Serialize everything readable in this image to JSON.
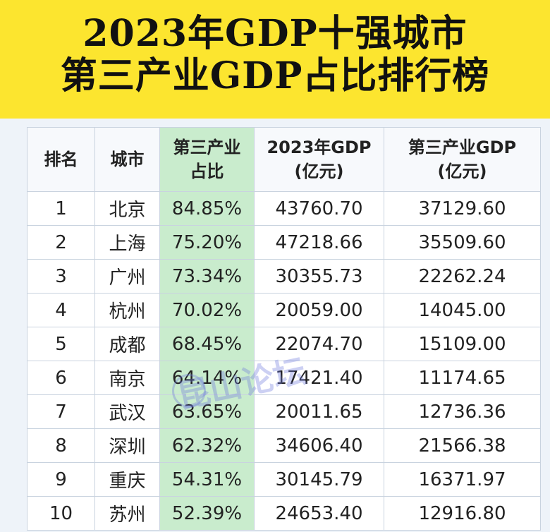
{
  "title": {
    "line1": "2023年GDP十强城市",
    "line2": "第三产业GDP占比排行榜"
  },
  "chart_data": {
    "type": "table",
    "columns": [
      {
        "line1": "排名",
        "line2": ""
      },
      {
        "line1": "城市",
        "line2": ""
      },
      {
        "line1": "第三产业",
        "line2": "占比"
      },
      {
        "line1": "2023年GDP",
        "line2": "(亿元)"
      },
      {
        "line1": "第三产业GDP",
        "line2": "(亿元)"
      }
    ],
    "rows": [
      {
        "rank": "1",
        "city": "北京",
        "share": "84.85%",
        "gdp": "43760.70",
        "tertiary_gdp": "37129.60"
      },
      {
        "rank": "2",
        "city": "上海",
        "share": "75.20%",
        "gdp": "47218.66",
        "tertiary_gdp": "35509.60"
      },
      {
        "rank": "3",
        "city": "广州",
        "share": "73.34%",
        "gdp": "30355.73",
        "tertiary_gdp": "22262.24"
      },
      {
        "rank": "4",
        "city": "杭州",
        "share": "70.02%",
        "gdp": "20059.00",
        "tertiary_gdp": "14045.00"
      },
      {
        "rank": "5",
        "city": "成都",
        "share": "68.45%",
        "gdp": "22074.70",
        "tertiary_gdp": "15109.00"
      },
      {
        "rank": "6",
        "city": "南京",
        "share": "64.14%",
        "gdp": "17421.40",
        "tertiary_gdp": "11174.65"
      },
      {
        "rank": "7",
        "city": "武汉",
        "share": "63.65%",
        "gdp": "20011.65",
        "tertiary_gdp": "12736.36"
      },
      {
        "rank": "8",
        "city": "深圳",
        "share": "62.32%",
        "gdp": "34606.40",
        "tertiary_gdp": "21566.38"
      },
      {
        "rank": "9",
        "city": "重庆",
        "share": "54.31%",
        "gdp": "30145.79",
        "tertiary_gdp": "16371.97"
      },
      {
        "rank": "10",
        "city": "苏州",
        "share": "52.39%",
        "gdp": "24653.40",
        "tertiary_gdp": "12916.80"
      }
    ],
    "highlight_column": "share",
    "highlight_color": "#c9eccd",
    "title_background": "#fce52f"
  },
  "watermark": {
    "text": "昆山论坛"
  }
}
